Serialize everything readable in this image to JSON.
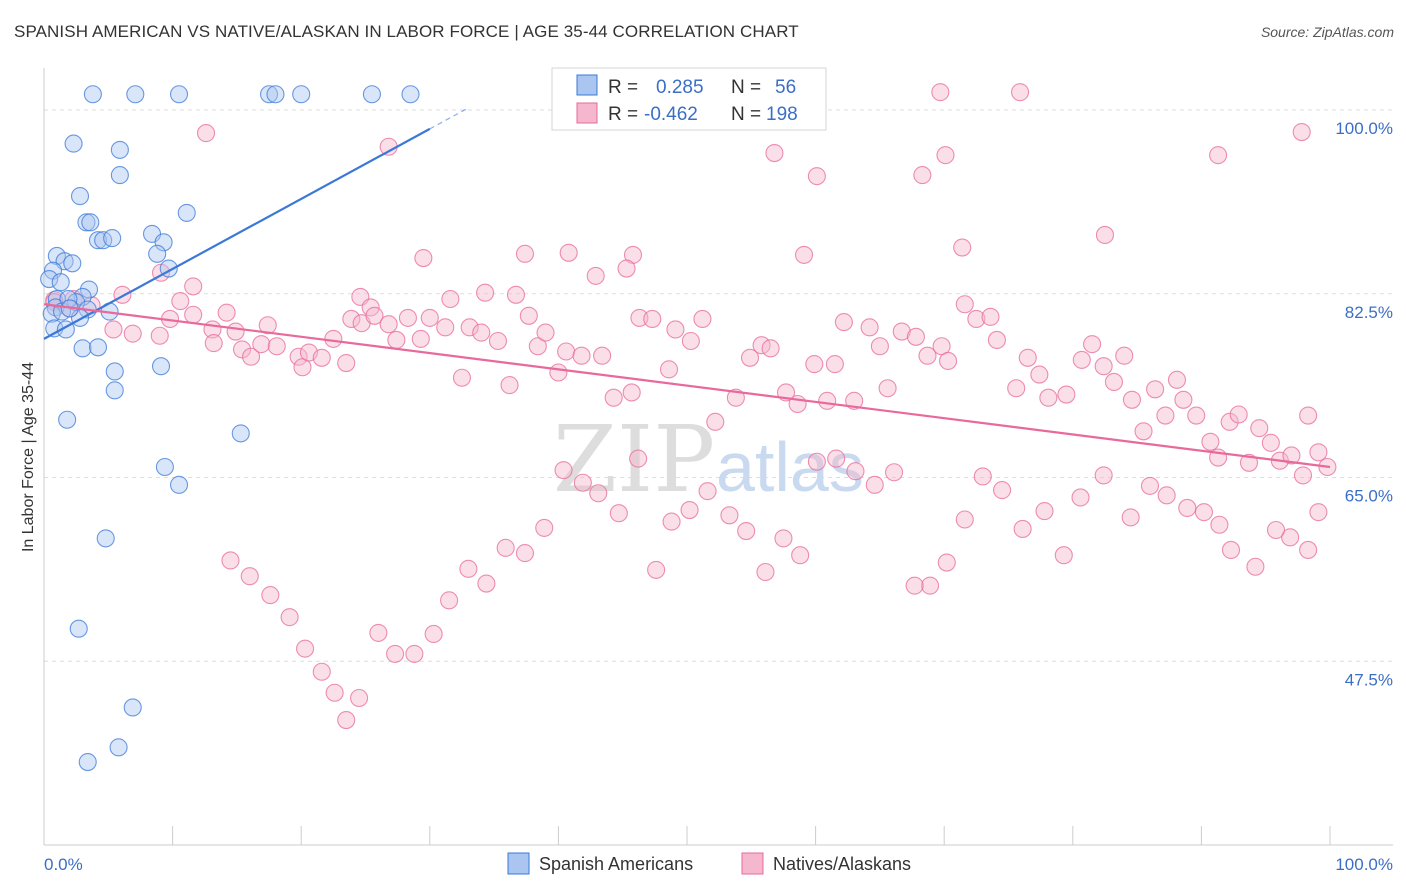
{
  "header": {
    "title": "SPANISH AMERICAN VS NATIVE/ALASKAN IN LABOR FORCE | AGE 35-44 CORRELATION CHART",
    "source": "Source: ZipAtlas.com"
  },
  "watermark": {
    "zip": "ZIP",
    "atlas": "atlas"
  },
  "colors": {
    "blue": "#3b78d8",
    "blue_fill": "#aac6f0",
    "pink": "#e8699a",
    "pink_fill": "#f5b7cd",
    "axis_text": "#3b6fc6",
    "grid": "#dddddd"
  },
  "legend": {
    "rows": [
      {
        "r_label": "R =",
        "r_value": "0.285",
        "n_label": "N =",
        "n_value": "56"
      },
      {
        "r_label": "R =",
        "r_value": "-0.462",
        "n_label": "N =",
        "n_value": "198"
      }
    ],
    "bottom": [
      "Spanish Americans",
      "Natives/Alaskans"
    ]
  },
  "chart_data": {
    "type": "scatter",
    "title": "SPANISH AMERICAN VS NATIVE/ALASKAN IN LABOR FORCE | AGE 35-44 CORRELATION CHART",
    "xlabel": "",
    "ylabel": "In Labor Force | Age 35-44",
    "xlim": [
      0,
      100
    ],
    "ylim": [
      30,
      104
    ],
    "x_tick_labels": [
      "0.0%",
      "100.0%"
    ],
    "y_ticks": [
      47.5,
      65.0,
      82.5,
      100.0
    ],
    "y_tick_labels": [
      "47.5%",
      "65.0%",
      "82.5%",
      "100.0%"
    ],
    "grid": true,
    "legend_position": "top-center",
    "series": [
      {
        "name": "Spanish Americans",
        "r": 0.285,
        "n": 56,
        "trend": {
          "x": [
            0,
            30
          ],
          "y": [
            78.2,
            98.2
          ],
          "dashed_to": [
            33,
            100.2
          ]
        },
        "points": [
          [
            3.8,
            101.5
          ],
          [
            7.1,
            101.5
          ],
          [
            10.5,
            101.5
          ],
          [
            17.5,
            101.5
          ],
          [
            18,
            101.5
          ],
          [
            20,
            101.5
          ],
          [
            25.5,
            101.5
          ],
          [
            28.5,
            101.5
          ],
          [
            2.3,
            96.8
          ],
          [
            5.9,
            96.2
          ],
          [
            5.9,
            93.8
          ],
          [
            2.8,
            91.8
          ],
          [
            11.1,
            90.2
          ],
          [
            3.3,
            89.3
          ],
          [
            3.6,
            89.3
          ],
          [
            4.2,
            87.6
          ],
          [
            4.6,
            87.6
          ],
          [
            5.3,
            87.8
          ],
          [
            8.4,
            88.2
          ],
          [
            9.3,
            87.4
          ],
          [
            8.8,
            86.3
          ],
          [
            1.0,
            86.1
          ],
          [
            1.6,
            85.6
          ],
          [
            2.2,
            85.4
          ],
          [
            9.7,
            84.9
          ],
          [
            0.7,
            84.7
          ],
          [
            0.4,
            83.9
          ],
          [
            1.3,
            83.6
          ],
          [
            3.5,
            82.9
          ],
          [
            3.0,
            82.2
          ],
          [
            1.0,
            82.0
          ],
          [
            2.5,
            81.7
          ],
          [
            0.9,
            81.2
          ],
          [
            3.4,
            81.0
          ],
          [
            5.1,
            80.8
          ],
          [
            0.6,
            80.6
          ],
          [
            1.4,
            80.8
          ],
          [
            2.8,
            80.2
          ],
          [
            0.8,
            79.2
          ],
          [
            1.7,
            79.1
          ],
          [
            3.0,
            77.3
          ],
          [
            4.2,
            77.4
          ],
          [
            9.1,
            75.6
          ],
          [
            5.5,
            75.1
          ],
          [
            5.5,
            73.3
          ],
          [
            1.8,
            70.5
          ],
          [
            15.3,
            69.2
          ],
          [
            9.4,
            66.0
          ],
          [
            10.5,
            64.3
          ],
          [
            4.8,
            59.2
          ],
          [
            2.7,
            50.6
          ],
          [
            6.9,
            43.1
          ],
          [
            5.8,
            39.3
          ],
          [
            3.4,
            37.9
          ],
          [
            1.9,
            82.0
          ],
          [
            2.0,
            81.1
          ]
        ]
      },
      {
        "name": "Natives/Alaskans",
        "r": -0.462,
        "n": 198,
        "trend": {
          "x": [
            0,
            100
          ],
          "y": [
            81.5,
            66.0
          ]
        },
        "points": [
          [
            75.9,
            101.7
          ],
          [
            58.3,
            101.7
          ],
          [
            69.7,
            101.7
          ],
          [
            12.6,
            97.8
          ],
          [
            26.8,
            96.5
          ],
          [
            56.8,
            95.9
          ],
          [
            70.1,
            95.7
          ],
          [
            91.3,
            95.7
          ],
          [
            97.8,
            97.9
          ],
          [
            68.3,
            93.8
          ],
          [
            60.1,
            93.7
          ],
          [
            82.5,
            88.1
          ],
          [
            71.4,
            86.9
          ],
          [
            59.1,
            86.2
          ],
          [
            45.8,
            86.2
          ],
          [
            40.8,
            86.4
          ],
          [
            37.4,
            86.3
          ],
          [
            29.5,
            85.9
          ],
          [
            42.9,
            84.2
          ],
          [
            45.3,
            84.9
          ],
          [
            34.3,
            82.6
          ],
          [
            31.6,
            82.0
          ],
          [
            36.7,
            82.4
          ],
          [
            24.6,
            82.2
          ],
          [
            9.1,
            84.5
          ],
          [
            11.6,
            83.2
          ],
          [
            6.1,
            82.4
          ],
          [
            2.3,
            82.0
          ],
          [
            0.8,
            81.9
          ],
          [
            0.8,
            81.7
          ],
          [
            2.0,
            81.1
          ],
          [
            3.7,
            81.4
          ],
          [
            5.4,
            79.1
          ],
          [
            6.9,
            78.7
          ],
          [
            9.0,
            78.5
          ],
          [
            9.8,
            80.1
          ],
          [
            10.6,
            81.8
          ],
          [
            11.6,
            80.5
          ],
          [
            13.1,
            79.1
          ],
          [
            13.2,
            77.8
          ],
          [
            14.2,
            80.7
          ],
          [
            14.9,
            78.9
          ],
          [
            15.4,
            77.2
          ],
          [
            16.1,
            76.5
          ],
          [
            16.9,
            77.7
          ],
          [
            17.4,
            79.5
          ],
          [
            18.1,
            77.5
          ],
          [
            19.8,
            76.5
          ],
          [
            20.1,
            75.5
          ],
          [
            20.6,
            76.9
          ],
          [
            21.6,
            76.4
          ],
          [
            22.5,
            78.2
          ],
          [
            23.5,
            75.9
          ],
          [
            23.9,
            80.1
          ],
          [
            24.7,
            79.7
          ],
          [
            25.4,
            81.2
          ],
          [
            25.7,
            80.4
          ],
          [
            26.8,
            79.6
          ],
          [
            27.4,
            78.1
          ],
          [
            28.3,
            80.2
          ],
          [
            29.3,
            78.2
          ],
          [
            30.0,
            80.2
          ],
          [
            31.2,
            79.3
          ],
          [
            32.5,
            74.5
          ],
          [
            33.1,
            79.3
          ],
          [
            34.0,
            78.8
          ],
          [
            35.3,
            78.0
          ],
          [
            36.2,
            73.8
          ],
          [
            37.7,
            80.4
          ],
          [
            38.4,
            77.5
          ],
          [
            39.0,
            78.8
          ],
          [
            40.0,
            75.0
          ],
          [
            40.6,
            77.0
          ],
          [
            41.8,
            76.6
          ],
          [
            43.4,
            76.6
          ],
          [
            44.3,
            72.6
          ],
          [
            45.7,
            73.1
          ],
          [
            46.3,
            80.2
          ],
          [
            47.3,
            80.1
          ],
          [
            48.6,
            75.3
          ],
          [
            49.1,
            79.1
          ],
          [
            50.3,
            78.0
          ],
          [
            51.2,
            80.1
          ],
          [
            52.2,
            70.3
          ],
          [
            53.8,
            72.6
          ],
          [
            54.9,
            76.4
          ],
          [
            55.8,
            77.6
          ],
          [
            56.5,
            77.3
          ],
          [
            57.7,
            73.1
          ],
          [
            58.6,
            72.0
          ],
          [
            59.9,
            75.8
          ],
          [
            60.9,
            72.3
          ],
          [
            61.5,
            75.8
          ],
          [
            62.2,
            79.8
          ],
          [
            63.0,
            72.3
          ],
          [
            64.2,
            79.3
          ],
          [
            65.0,
            77.5
          ],
          [
            65.6,
            73.5
          ],
          [
            66.7,
            78.9
          ],
          [
            67.8,
            78.4
          ],
          [
            68.7,
            76.6
          ],
          [
            69.8,
            77.5
          ],
          [
            70.3,
            76.1
          ],
          [
            71.6,
            81.5
          ],
          [
            72.5,
            80.1
          ],
          [
            73.6,
            80.3
          ],
          [
            74.1,
            78.1
          ],
          [
            75.6,
            73.5
          ],
          [
            76.5,
            76.4
          ],
          [
            77.4,
            74.8
          ],
          [
            78.1,
            72.6
          ],
          [
            79.5,
            72.9
          ],
          [
            80.7,
            76.2
          ],
          [
            81.5,
            77.7
          ],
          [
            82.4,
            75.6
          ],
          [
            83.2,
            74.1
          ],
          [
            84.0,
            76.6
          ],
          [
            84.6,
            72.4
          ],
          [
            85.5,
            69.4
          ],
          [
            86.4,
            73.4
          ],
          [
            87.2,
            70.9
          ],
          [
            88.1,
            74.3
          ],
          [
            88.6,
            72.4
          ],
          [
            89.6,
            70.9
          ],
          [
            90.7,
            68.4
          ],
          [
            91.3,
            66.9
          ],
          [
            92.2,
            70.3
          ],
          [
            92.9,
            71.0
          ],
          [
            93.7,
            66.4
          ],
          [
            94.5,
            69.7
          ],
          [
            95.4,
            68.3
          ],
          [
            96.1,
            66.6
          ],
          [
            97.0,
            67.1
          ],
          [
            97.9,
            65.2
          ],
          [
            98.3,
            70.9
          ],
          [
            99.1,
            67.4
          ],
          [
            99.8,
            66.0
          ],
          [
            99.1,
            61.7
          ],
          [
            98.3,
            58.1
          ],
          [
            96.9,
            59.3
          ],
          [
            95.8,
            60.0
          ],
          [
            94.2,
            56.5
          ],
          [
            92.3,
            58.1
          ],
          [
            91.4,
            60.5
          ],
          [
            90.2,
            61.7
          ],
          [
            88.9,
            62.1
          ],
          [
            87.3,
            63.3
          ],
          [
            86.0,
            64.2
          ],
          [
            84.5,
            61.2
          ],
          [
            82.4,
            65.2
          ],
          [
            80.6,
            63.1
          ],
          [
            79.3,
            57.6
          ],
          [
            77.8,
            61.8
          ],
          [
            76.1,
            60.1
          ],
          [
            74.5,
            63.8
          ],
          [
            73.0,
            65.1
          ],
          [
            71.6,
            61.0
          ],
          [
            70.2,
            56.9
          ],
          [
            68.9,
            54.7
          ],
          [
            67.7,
            54.7
          ],
          [
            66.1,
            65.5
          ],
          [
            64.6,
            64.3
          ],
          [
            63.1,
            65.6
          ],
          [
            61.6,
            66.8
          ],
          [
            60.1,
            66.5
          ],
          [
            58.8,
            57.6
          ],
          [
            57.5,
            59.2
          ],
          [
            56.1,
            56.0
          ],
          [
            54.6,
            59.9
          ],
          [
            53.3,
            61.4
          ],
          [
            51.6,
            63.7
          ],
          [
            50.2,
            61.9
          ],
          [
            48.8,
            60.8
          ],
          [
            47.6,
            56.2
          ],
          [
            46.2,
            66.8
          ],
          [
            44.7,
            61.6
          ],
          [
            43.1,
            63.5
          ],
          [
            41.9,
            64.5
          ],
          [
            40.4,
            65.7
          ],
          [
            38.9,
            60.2
          ],
          [
            37.4,
            57.8
          ],
          [
            35.9,
            58.3
          ],
          [
            34.4,
            54.9
          ],
          [
            33.0,
            56.3
          ],
          [
            31.5,
            53.3
          ],
          [
            30.3,
            50.1
          ],
          [
            28.8,
            48.2
          ],
          [
            27.3,
            48.2
          ],
          [
            26.0,
            50.2
          ],
          [
            24.5,
            44.0
          ],
          [
            23.5,
            41.9
          ],
          [
            22.6,
            44.5
          ],
          [
            21.6,
            46.5
          ],
          [
            20.3,
            48.7
          ],
          [
            19.1,
            51.7
          ],
          [
            17.6,
            53.8
          ],
          [
            16.0,
            55.6
          ],
          [
            14.5,
            57.1
          ]
        ]
      }
    ]
  }
}
